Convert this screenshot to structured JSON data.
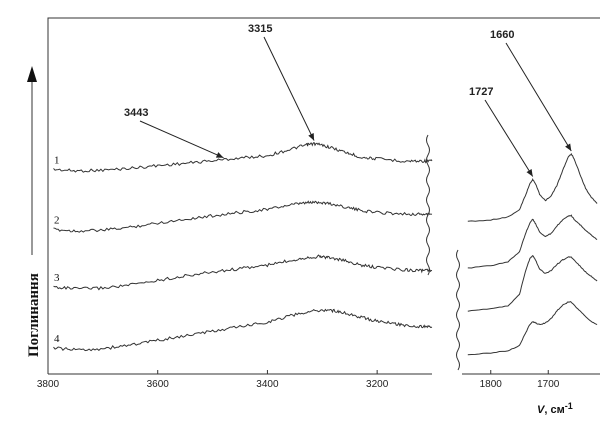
{
  "chart_data": {
    "type": "line",
    "ylabel": "Поглинання",
    "xlabel_symbol": "V",
    "xlabel_unit": ", см",
    "xlabel_exp": "-1",
    "series_labels": [
      "1",
      "2",
      "3",
      "4"
    ],
    "panels": [
      {
        "xlim": [
          3800,
          3100
        ],
        "xticks": [
          3800,
          3600,
          3400,
          3200
        ],
        "annotations": [
          {
            "text": "3315",
            "x": 3315,
            "series": 0
          },
          {
            "text": "3443",
            "x": 3480,
            "series": 0
          }
        ],
        "series": [
          {
            "name": "1",
            "x": [
              3790,
              3750,
              3700,
              3650,
              3600,
              3550,
              3500,
              3450,
              3400,
              3360,
              3330,
              3315,
              3290,
              3260,
              3230,
              3200,
              3150,
              3120,
              3100
            ],
            "y": [
              0.7,
              0.66,
              0.68,
              0.73,
              0.8,
              0.86,
              0.93,
              1.0,
              1.06,
              1.22,
              1.34,
              1.38,
              1.3,
              1.16,
              1.02,
              0.98,
              0.92,
              0.92,
              0.92
            ]
          },
          {
            "name": "2",
            "x": [
              3790,
              3750,
              3700,
              3650,
              3600,
              3550,
              3500,
              3450,
              3400,
              3360,
              3330,
              3310,
              3290,
              3260,
              3230,
              3200,
              3150,
              3120,
              3100
            ],
            "y": [
              0.33,
              0.29,
              0.31,
              0.39,
              0.5,
              0.6,
              0.69,
              0.78,
              0.86,
              0.97,
              1.03,
              1.05,
              1.02,
              0.93,
              0.83,
              0.78,
              0.74,
              0.73,
              0.73
            ]
          },
          {
            "name": "3",
            "x": [
              3790,
              3750,
              3700,
              3650,
              3600,
              3550,
              3500,
              3450,
              3400,
              3360,
              3330,
              3305,
              3290,
              3260,
              3230,
              3200,
              3150,
              3120,
              3100
            ],
            "y": [
              0.03,
              -0.02,
              0.0,
              0.08,
              0.2,
              0.32,
              0.42,
              0.51,
              0.6,
              0.72,
              0.8,
              0.83,
              0.81,
              0.72,
              0.6,
              0.54,
              0.48,
              0.46,
              0.46
            ]
          },
          {
            "name": "4",
            "x": [
              3790,
              3750,
              3700,
              3650,
              3600,
              3550,
              3500,
              3450,
              3400,
              3360,
              3320,
              3290,
              3270,
              3240,
              3210,
              3180,
              3150,
              3120,
              3100
            ],
            "y": [
              -0.42,
              -0.47,
              -0.44,
              -0.34,
              -0.22,
              -0.1,
              0.02,
              0.14,
              0.26,
              0.42,
              0.55,
              0.58,
              0.54,
              0.43,
              0.32,
              0.24,
              0.18,
              0.14,
              0.13
            ]
          }
        ]
      },
      {
        "xlim": [
          1850,
          1610
        ],
        "xticks": [
          1800,
          1700
        ],
        "annotations": [
          {
            "text": "1727",
            "x": 1727,
            "series": 0
          },
          {
            "text": "1660",
            "x": 1660,
            "series": 0
          }
        ],
        "series": [
          {
            "name": "1",
            "x": [
              1840,
              1800,
              1770,
              1750,
              1740,
              1732,
              1727,
              1722,
              1715,
              1705,
              1695,
              1685,
              1675,
              1665,
              1660,
              1655,
              1645,
              1635,
              1625,
              1615
            ],
            "y": [
              0.62,
              0.64,
              0.68,
              0.78,
              0.96,
              1.12,
              1.18,
              1.12,
              0.98,
              0.9,
              0.96,
              1.1,
              1.3,
              1.48,
              1.52,
              1.46,
              1.25,
              1.06,
              0.94,
              0.86
            ]
          },
          {
            "name": "2",
            "x": [
              1840,
              1800,
              1770,
              1750,
              1740,
              1732,
              1727,
              1722,
              1715,
              1705,
              1695,
              1685,
              1675,
              1665,
              1660,
              1655,
              1645,
              1635,
              1625,
              1615
            ],
            "y": [
              0.4,
              0.43,
              0.48,
              0.62,
              0.85,
              1.0,
              1.05,
              0.99,
              0.88,
              0.82,
              0.86,
              0.96,
              1.04,
              1.09,
              1.1,
              1.05,
              0.98,
              0.9,
              0.84,
              0.78
            ]
          },
          {
            "name": "3",
            "x": [
              1840,
              1800,
              1770,
              1750,
              1740,
              1732,
              1727,
              1722,
              1715,
              1705,
              1695,
              1685,
              1675,
              1665,
              1660,
              1655,
              1645,
              1635,
              1625,
              1615
            ],
            "y": [
              0.2,
              0.23,
              0.27,
              0.42,
              0.72,
              0.9,
              0.94,
              0.88,
              0.76,
              0.7,
              0.74,
              0.82,
              0.88,
              0.92,
              0.92,
              0.88,
              0.8,
              0.72,
              0.66,
              0.6
            ]
          },
          {
            "name": "4",
            "x": [
              1840,
              1800,
              1770,
              1750,
              1740,
              1732,
              1727,
              1722,
              1715,
              1705,
              1695,
              1685,
              1675,
              1665,
              1660,
              1655,
              1645,
              1635,
              1625,
              1615
            ],
            "y": [
              0.02,
              0.04,
              0.07,
              0.14,
              0.3,
              0.42,
              0.46,
              0.44,
              0.42,
              0.44,
              0.5,
              0.6,
              0.68,
              0.72,
              0.72,
              0.68,
              0.6,
              0.52,
              0.46,
              0.42
            ]
          }
        ]
      }
    ]
  }
}
